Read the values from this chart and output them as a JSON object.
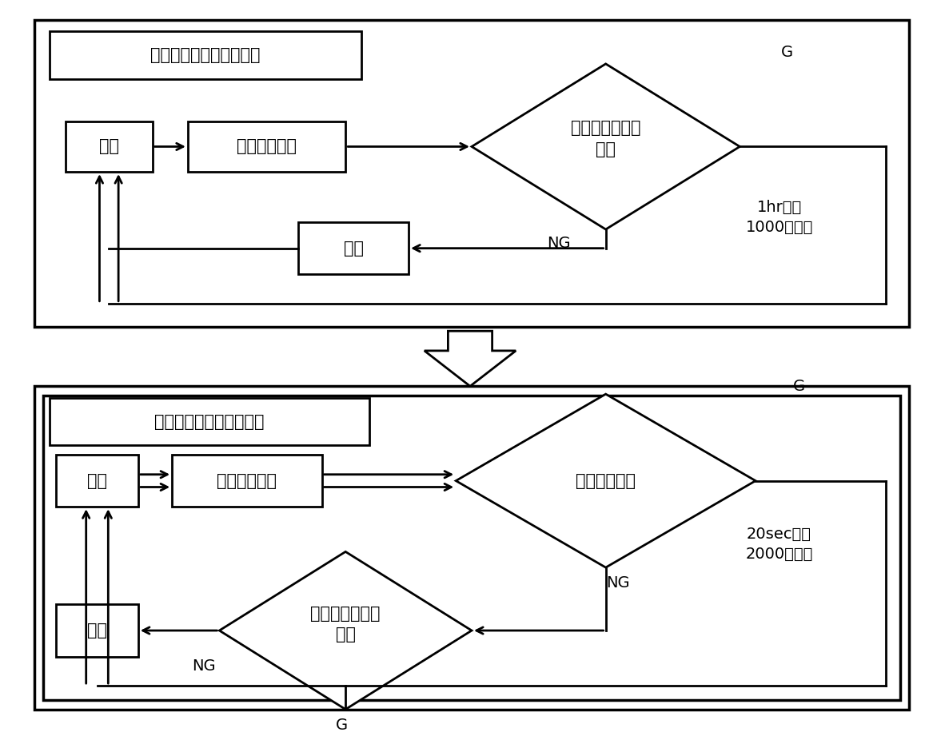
{
  "bg_color": "#ffffff",
  "line_color": "#000000",
  "top_panel": {
    "title": "現状の潤滑診断システム",
    "setubi_label": "設備",
    "sampling_label": "サンプリング",
    "ferro_label": "フェログラフィ\n診断",
    "taisaku_label": "対策",
    "g_label": "G",
    "ng_label": "NG",
    "stat_label": "1hr／件\n1000件／年"
  },
  "bottom_panel": {
    "title": "今後の潤滑診断システム",
    "setubi_label": "設備",
    "sampling_label": "サンプリング",
    "jinsoku_label": "迅速簡易診断",
    "ferro_label": "フェログラフィ\n診断",
    "taisaku_label": "対策",
    "g_label1": "G",
    "g_label2": "G",
    "ng_label1": "NG",
    "ng_label2": "NG",
    "stat_label": "20sec／件\n2000件／年"
  }
}
